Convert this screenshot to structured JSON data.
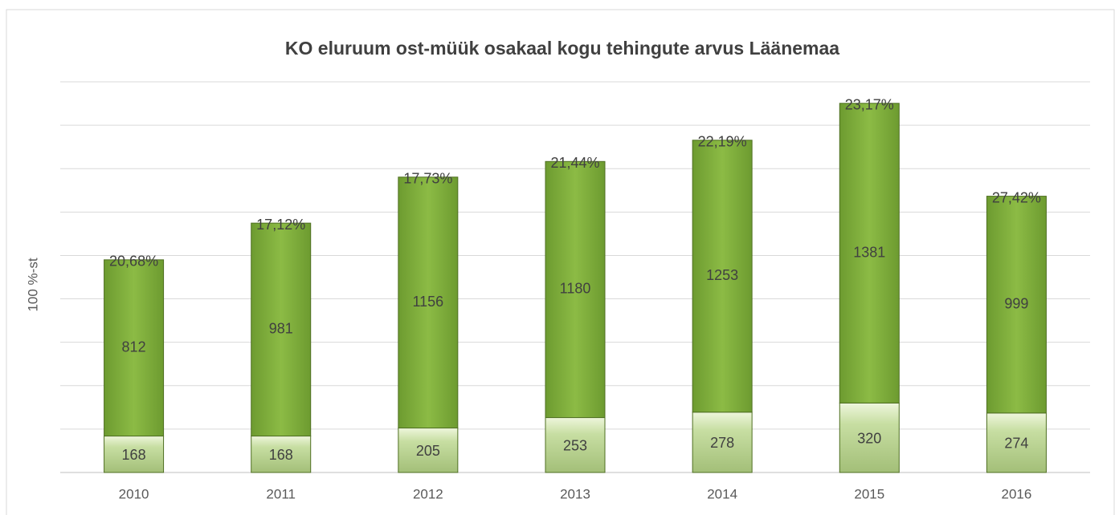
{
  "chart_data": {
    "type": "stacked_bar",
    "title": "KO eluruum ost-müük osakaal kogu tehingute arvus Läänemaa",
    "y_label": "100 %-st",
    "categories": [
      "2010",
      "2011",
      "2012",
      "2013",
      "2014",
      "2015",
      "2016"
    ],
    "series": [
      {
        "color": "#b5d08a",
        "values": [
          168,
          168,
          205,
          253,
          278,
          320,
          274
        ]
      },
      {
        "color": "#7fae3c",
        "values": [
          812,
          981,
          1156,
          1180,
          1253,
          1381,
          999
        ]
      }
    ],
    "share_labels": [
      "20,68%",
      "17,12%",
      "17,73%",
      "21,44%",
      "22,19%",
      "23,17%",
      "27,42%"
    ],
    "ylim": [
      0,
      1800
    ],
    "yticks": [
      0,
      200,
      400,
      600,
      800,
      1000,
      1200,
      1400,
      1600,
      1800
    ],
    "ytick_labels": false,
    "grid": true
  }
}
